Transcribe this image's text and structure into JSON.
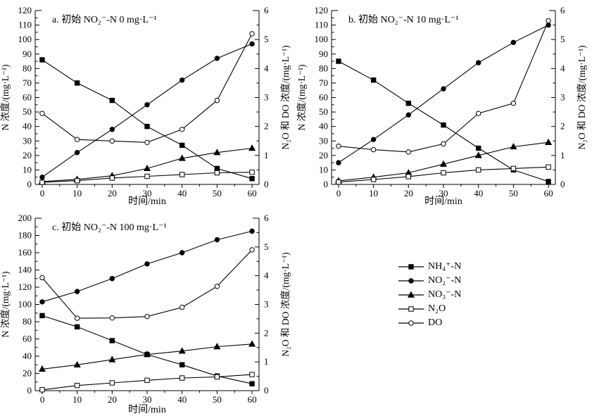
{
  "figure": {
    "background": "#ffffff",
    "ink": "#000000"
  },
  "legend": {
    "items": [
      {
        "label": "NH₄⁺-N",
        "marker": "square-filled"
      },
      {
        "label": "NO₂⁻-N",
        "marker": "circle-filled"
      },
      {
        "label": "NO₃⁻-N",
        "marker": "triangle-filled"
      },
      {
        "label": "N₂O",
        "marker": "square-open"
      },
      {
        "label": "DO",
        "marker": "circle-open"
      }
    ]
  },
  "chart_data": [
    {
      "id": "a",
      "type": "line",
      "title": "a. 初始 NO₂⁻-N 0 mg·L⁻¹",
      "xlabel": "时间/min",
      "ylabel_left": "N 浓度/(mg·L⁻¹)",
      "ylabel_right": "N₂O 和 DO 浓度/(mg·L⁻¹)",
      "x": [
        0,
        10,
        20,
        30,
        40,
        50,
        60
      ],
      "xticks": [
        0,
        10,
        20,
        30,
        40,
        50,
        60
      ],
      "xlim": [
        -2,
        62
      ],
      "ylim_left": [
        0,
        120
      ],
      "ytick_left_step": 10,
      "ylim_right": [
        0,
        6
      ],
      "ytick_right_step": 1,
      "grid": false,
      "series": [
        {
          "name": "NH4-N",
          "axis": "left",
          "marker": "square-filled",
          "values": [
            86,
            70,
            58,
            40,
            27,
            11,
            4
          ]
        },
        {
          "name": "NO2-N",
          "axis": "left",
          "marker": "circle-filled",
          "values": [
            5,
            22,
            38,
            55,
            72,
            87,
            97
          ]
        },
        {
          "name": "NO3-N",
          "axis": "left",
          "marker": "triangle-filled",
          "values": [
            2,
            3.5,
            6,
            11,
            18,
            22,
            25
          ]
        },
        {
          "name": "N2O",
          "axis": "right",
          "marker": "square-open",
          "values": [
            0.07,
            0.13,
            0.22,
            0.28,
            0.34,
            0.4,
            0.42
          ]
        },
        {
          "name": "DO",
          "axis": "right",
          "marker": "circle-open",
          "values": [
            2.45,
            1.55,
            1.5,
            1.45,
            1.9,
            2.9,
            5.2
          ]
        }
      ]
    },
    {
      "id": "b",
      "type": "line",
      "title": "b. 初始 NO₂⁻-N 10 mg·L⁻¹",
      "xlabel": "时间/min",
      "ylabel_left": "N 浓度/(mg·L⁻¹)",
      "ylabel_right": "N₂O 和 DO 浓度/(mg·L⁻¹)",
      "x": [
        0,
        10,
        20,
        30,
        40,
        50,
        60
      ],
      "xticks": [
        0,
        10,
        20,
        30,
        40,
        50,
        60
      ],
      "xlim": [
        -2,
        62
      ],
      "ylim_left": [
        0,
        120
      ],
      "ytick_left_step": 10,
      "ylim_right": [
        0,
        6
      ],
      "ytick_right_step": 1,
      "grid": false,
      "series": [
        {
          "name": "NH4-N",
          "axis": "left",
          "marker": "square-filled",
          "values": [
            85,
            72,
            56,
            41,
            25,
            10,
            2
          ]
        },
        {
          "name": "NO2-N",
          "axis": "left",
          "marker": "circle-filled",
          "values": [
            15,
            31,
            48,
            66,
            84,
            98,
            110
          ]
        },
        {
          "name": "NO3-N",
          "axis": "left",
          "marker": "triangle-filled",
          "values": [
            2.5,
            5,
            8,
            14,
            20,
            26,
            29
          ]
        },
        {
          "name": "N2O",
          "axis": "right",
          "marker": "square-open",
          "values": [
            0.08,
            0.17,
            0.27,
            0.4,
            0.5,
            0.55,
            0.6
          ]
        },
        {
          "name": "DO",
          "axis": "right",
          "marker": "circle-open",
          "values": [
            1.32,
            1.2,
            1.12,
            1.4,
            2.45,
            2.8,
            5.65
          ]
        }
      ]
    },
    {
      "id": "c",
      "type": "line",
      "title": "c. 初始 NO₂⁻-N 100 mg·L⁻¹",
      "xlabel": "时间/min",
      "ylabel_left": "N 浓度/(mg·L⁻¹)",
      "ylabel_right": "N₂O 和 DO 浓度/(mg·L⁻¹)",
      "x": [
        0,
        10,
        20,
        30,
        40,
        50,
        60
      ],
      "xticks": [
        0,
        10,
        20,
        30,
        40,
        50,
        60
      ],
      "xlim": [
        -2,
        62
      ],
      "ylim_left": [
        0,
        200
      ],
      "ytick_left_step": 20,
      "ylim_right": [
        0,
        6
      ],
      "ytick_right_step": 1,
      "grid": false,
      "series": [
        {
          "name": "NH4-N",
          "axis": "left",
          "marker": "square-filled",
          "values": [
            87,
            74,
            58,
            42,
            30,
            17,
            8
          ]
        },
        {
          "name": "NO2-N",
          "axis": "left",
          "marker": "circle-filled",
          "values": [
            103,
            115,
            130,
            147,
            160,
            175,
            185
          ]
        },
        {
          "name": "NO3-N",
          "axis": "left",
          "marker": "triangle-filled",
          "values": [
            25,
            30,
            36,
            42,
            46,
            51,
            54
          ]
        },
        {
          "name": "N2O",
          "axis": "right",
          "marker": "square-open",
          "values": [
            0.03,
            0.18,
            0.27,
            0.36,
            0.44,
            0.48,
            0.56
          ]
        },
        {
          "name": "DO",
          "axis": "right",
          "marker": "circle-open",
          "values": [
            3.93,
            2.52,
            2.53,
            2.58,
            2.9,
            3.63,
            4.9
          ]
        }
      ]
    }
  ]
}
